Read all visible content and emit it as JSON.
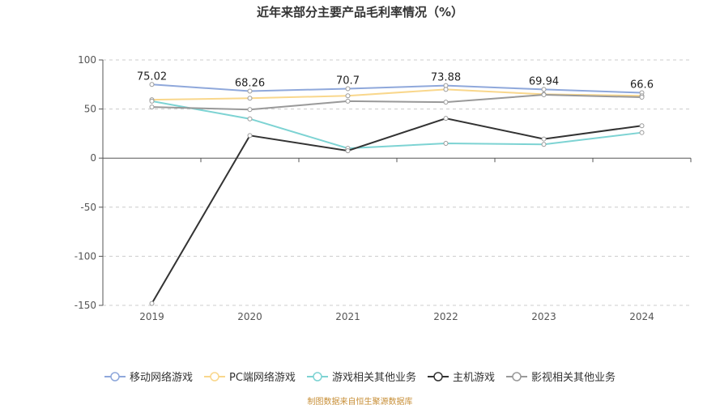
{
  "chart_data": {
    "type": "line",
    "title": "近年来部分主要产品毛利率情况（%）",
    "categories": [
      "2019",
      "2020",
      "2021",
      "2022",
      "2023",
      "2024"
    ],
    "ylim": [
      -150,
      100
    ],
    "yticks": [
      100,
      50,
      0,
      -50,
      -100,
      -150
    ],
    "grid": true,
    "legend_position": "bottom",
    "series": [
      {
        "name": "移动网络游戏",
        "color": "#8fa8db",
        "values": [
          75.02,
          68.26,
          70.7,
          73.88,
          69.94,
          66.6
        ],
        "labels": [
          "75.02",
          "68.26",
          "70.7",
          "73.88",
          "69.94",
          "66.6"
        ]
      },
      {
        "name": "PC端网络游戏",
        "color": "#f9d78c",
        "values": [
          59.5,
          61,
          63.5,
          70,
          65,
          63.5
        ]
      },
      {
        "name": "游戏相关其他业务",
        "color": "#7dd3d3",
        "values": [
          58,
          40,
          10,
          15,
          14,
          26
        ]
      },
      {
        "name": "主机游戏",
        "color": "#333333",
        "values": [
          -148,
          23,
          7.5,
          40.5,
          19.5,
          33
        ]
      },
      {
        "name": "影视相关其他业务",
        "color": "#999999",
        "values": [
          52,
          49.5,
          58,
          57,
          64.5,
          62
        ]
      }
    ]
  },
  "source": "制图数据来自恒生聚源数据库"
}
